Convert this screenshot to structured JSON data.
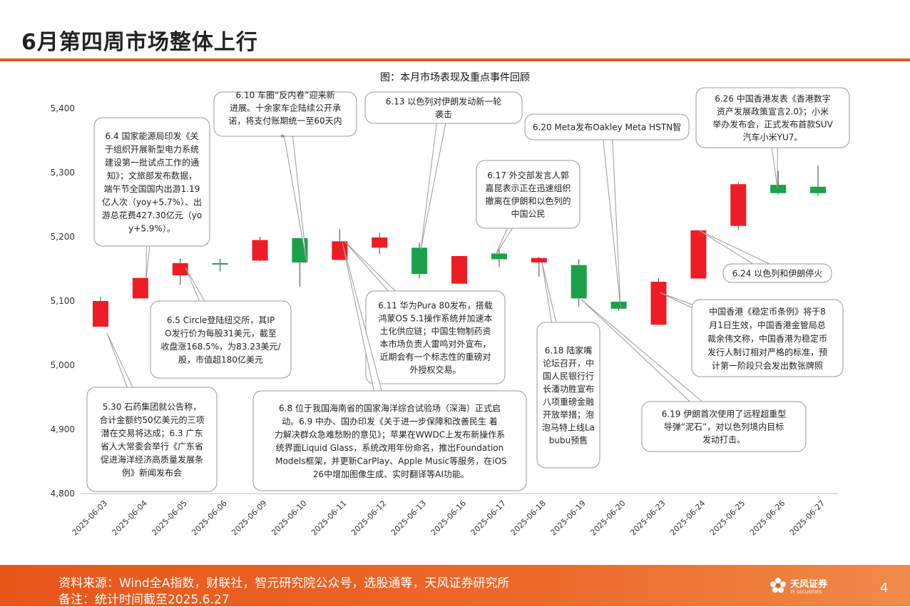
{
  "page": {
    "title": "6月第四周市场整体上行",
    "page_number": "4",
    "accent_color": "#e45a1e"
  },
  "chart_data": {
    "type": "candlestick",
    "title": "图：本月市场表现及重点事件回顾",
    "ylim": [
      4800,
      5400
    ],
    "yticks": [
      4800,
      4900,
      5000,
      5100,
      5200,
      5300,
      5400
    ],
    "ytick_labels": [
      "4,800",
      "4,900",
      "5,000",
      "5,100",
      "5,200",
      "5,300",
      "5,400"
    ],
    "up_color": "#ee1c25",
    "down_color": "#1aa14a",
    "categories": [
      "2025-06-03",
      "2025-06-04",
      "2025-06-05",
      "2025-06-06",
      "2025-06-09",
      "2025-06-10",
      "2025-06-11",
      "2025-06-12",
      "2025-06-13",
      "2025-06-16",
      "2025-06-17",
      "2025-06-18",
      "2025-06-19",
      "2025-06-20",
      "2025-06-23",
      "2025-06-24",
      "2025-06-25",
      "2025-06-26",
      "2025-06-27"
    ],
    "candles": [
      {
        "open": 5060,
        "close": 5100,
        "high": 5107,
        "low": 5060
      },
      {
        "open": 5104,
        "close": 5136,
        "high": 5136,
        "low": 5104
      },
      {
        "open": 5140,
        "close": 5159,
        "high": 5166,
        "low": 5125
      },
      {
        "open": 5159,
        "close": 5158,
        "high": 5166,
        "low": 5146
      },
      {
        "open": 5163,
        "close": 5195,
        "high": 5200,
        "low": 5162
      },
      {
        "open": 5198,
        "close": 5160,
        "high": 5198,
        "low": 5122
      },
      {
        "open": 5164,
        "close": 5193,
        "high": 5212,
        "low": 5164
      },
      {
        "open": 5183,
        "close": 5199,
        "high": 5206,
        "low": 5173
      },
      {
        "open": 5183,
        "close": 5142,
        "high": 5191,
        "low": 5135
      },
      {
        "open": 5127,
        "close": 5170,
        "high": 5170,
        "low": 5127
      },
      {
        "open": 5174,
        "close": 5165,
        "high": 5184,
        "low": 5153
      },
      {
        "open": 5160,
        "close": 5167,
        "high": 5169,
        "low": 5138
      },
      {
        "open": 5156,
        "close": 5104,
        "high": 5165,
        "low": 5091
      },
      {
        "open": 5099,
        "close": 5088,
        "high": 5099,
        "low": 5085
      },
      {
        "open": 5063,
        "close": 5130,
        "high": 5136,
        "low": 5063
      },
      {
        "open": 5135,
        "close": 5210,
        "high": 5210,
        "low": 5135
      },
      {
        "open": 5217,
        "close": 5282,
        "high": 5285,
        "low": 5211
      },
      {
        "open": 5281,
        "close": 5268,
        "high": 5303,
        "low": 5266
      },
      {
        "open": 5278,
        "close": 5268,
        "high": 5311,
        "low": 5264
      }
    ],
    "annotations": [
      {
        "text": "6.4 国家能源局印发《关于组织开展新型电力系统建设第一批试点工作的通知》；文旅部发布数据，端午节全国国内出游1.19亿人次（yoy+5.7%）、出游总花费427.30亿元（yoy+5.9%）。"
      },
      {
        "text": "6.10 车圈“反内卷”迎来新进展。十余家车企陆续公开承诺，将支付账期统一至60天内。"
      },
      {
        "text": "6.13 以色列对伊朗发动新一轮袭击"
      },
      {
        "text": "6.20 Meta发布Oakley Meta HSTN智"
      },
      {
        "text": "6.26 中国香港发表《香港数字资产发展政策宣言2.0》；小米举办发布会，正式发布首款SUV汽车小米YU7。"
      },
      {
        "text": "6.17 外交部发言人郭嘉昆表示正在迅速组织撤离在伊朗和以色列的中国公民"
      },
      {
        "text": "6.24 以色列和伊朗停火"
      },
      {
        "text": "6.5 Circle登陆纽交所，其IPO发行价为每股31美元，截至收盘涨168.5%，为83.23美元/股，市值超180亿美元"
      },
      {
        "text": "6.11 华为Pura 80发布，搭载鸿蒙OS 5.1操作系统并加速本土化供应链；中国生物制药资本市场负责人雷鸣对外宣布，近期会有一个标志性的重磅对外授权交易。"
      },
      {
        "text": "中国香港《稳定币条例》将于8月1日生效，中国香港金管局总裁余伟文称，中国香港为稳定币发行人制订相对严格的标准，预计第一阶段只会发出数张牌照"
      },
      {
        "text": "6.18 陆家嘴论坛召开，中国人民银行行长潘功胜宣布八项重磅金融开放举措；泡泡马特上线Labubu预售"
      },
      {
        "text": "5.30 石药集团就公告称，合计金额约50亿美元的三项潜在交易将达成；6.3 广东省人大常委会举行《广东省促进海洋经济高质量发展条例》新闻发布会"
      },
      {
        "text": "6.8 位于我国海南省的国家海洋综合试验场（深海）正式启动。6.9 中办、国办印发《关于进一步保障和改善民生 着力解决群众急难愁盼的意见》；苹果在WWDC上发布新操作系统界面Liquid Glass，系统改用年份命名，推出Foundation Models框架，并更新CarPlay、Apple Music等服务，在iOS 26中增加图像生成、实时翻译等AI功能。"
      },
      {
        "text": "6.19 伊朗首次使用了远程超重型导弹“泥石”，对以色列境内目标发动打击。"
      }
    ]
  },
  "footer": {
    "source": "资料来源：Wind全A指数，财联社，智元研究院公众号，选股通等，天风证券研究所",
    "note": "备注：统计时间截至2025.6.27",
    "logo_text": "天风证券",
    "logo_subtext": "TF SECURITIES"
  }
}
